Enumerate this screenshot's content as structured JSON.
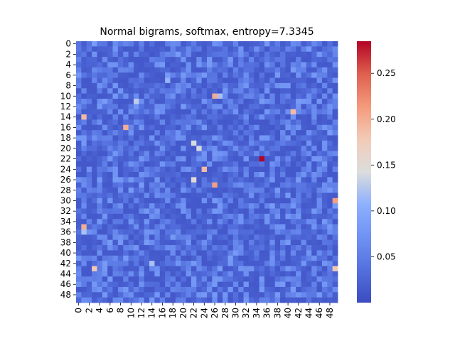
{
  "chart_data": {
    "type": "heatmap",
    "title": "Normal bigrams, softmax, entropy=7.3345",
    "xlabel": "",
    "ylabel": "",
    "rows": 50,
    "cols": 50,
    "x_tick_labels": [
      "0",
      "2",
      "4",
      "6",
      "8",
      "10",
      "12",
      "14",
      "16",
      "18",
      "20",
      "22",
      "24",
      "26",
      "28",
      "30",
      "32",
      "34",
      "36",
      "38",
      "40",
      "42",
      "44",
      "46",
      "48"
    ],
    "y_tick_labels": [
      "0",
      "2",
      "4",
      "6",
      "8",
      "10",
      "12",
      "14",
      "16",
      "18",
      "20",
      "22",
      "24",
      "26",
      "28",
      "30",
      "32",
      "34",
      "36",
      "38",
      "40",
      "42",
      "44",
      "46",
      "48"
    ],
    "colorbar": {
      "colormap": "coolwarm",
      "vmin": 0.0,
      "vmax": 0.285,
      "tick_values": [
        0.05,
        0.1,
        0.15,
        0.2,
        0.25
      ],
      "tick_labels": [
        "0.05",
        "0.10",
        "0.15",
        "0.20",
        "0.25"
      ]
    },
    "background_value": 0.035,
    "hot_cells": [
      {
        "row": 22,
        "col": 35,
        "value": 0.285
      },
      {
        "row": 10,
        "col": 26,
        "value": 0.2
      },
      {
        "row": 27,
        "col": 26,
        "value": 0.21
      },
      {
        "row": 16,
        "col": 9,
        "value": 0.2
      },
      {
        "row": 14,
        "col": 1,
        "value": 0.19
      },
      {
        "row": 13,
        "col": 41,
        "value": 0.19
      },
      {
        "row": 35,
        "col": 1,
        "value": 0.2
      },
      {
        "row": 30,
        "col": 49,
        "value": 0.21
      },
      {
        "row": 43,
        "col": 49,
        "value": 0.18
      },
      {
        "row": 43,
        "col": 3,
        "value": 0.18
      },
      {
        "row": 24,
        "col": 24,
        "value": 0.19
      },
      {
        "row": 26,
        "col": 22,
        "value": 0.15
      },
      {
        "row": 19,
        "col": 22,
        "value": 0.14
      },
      {
        "row": 20,
        "col": 23,
        "value": 0.14
      },
      {
        "row": 10,
        "col": 27,
        "value": 0.12
      },
      {
        "row": 11,
        "col": 11,
        "value": 0.13
      },
      {
        "row": 14,
        "col": 1,
        "value": 0.19
      },
      {
        "row": 36,
        "col": 1,
        "value": 0.12
      },
      {
        "row": 42,
        "col": 14,
        "value": 0.12
      },
      {
        "row": 7,
        "col": 17,
        "value": 0.11
      }
    ]
  }
}
